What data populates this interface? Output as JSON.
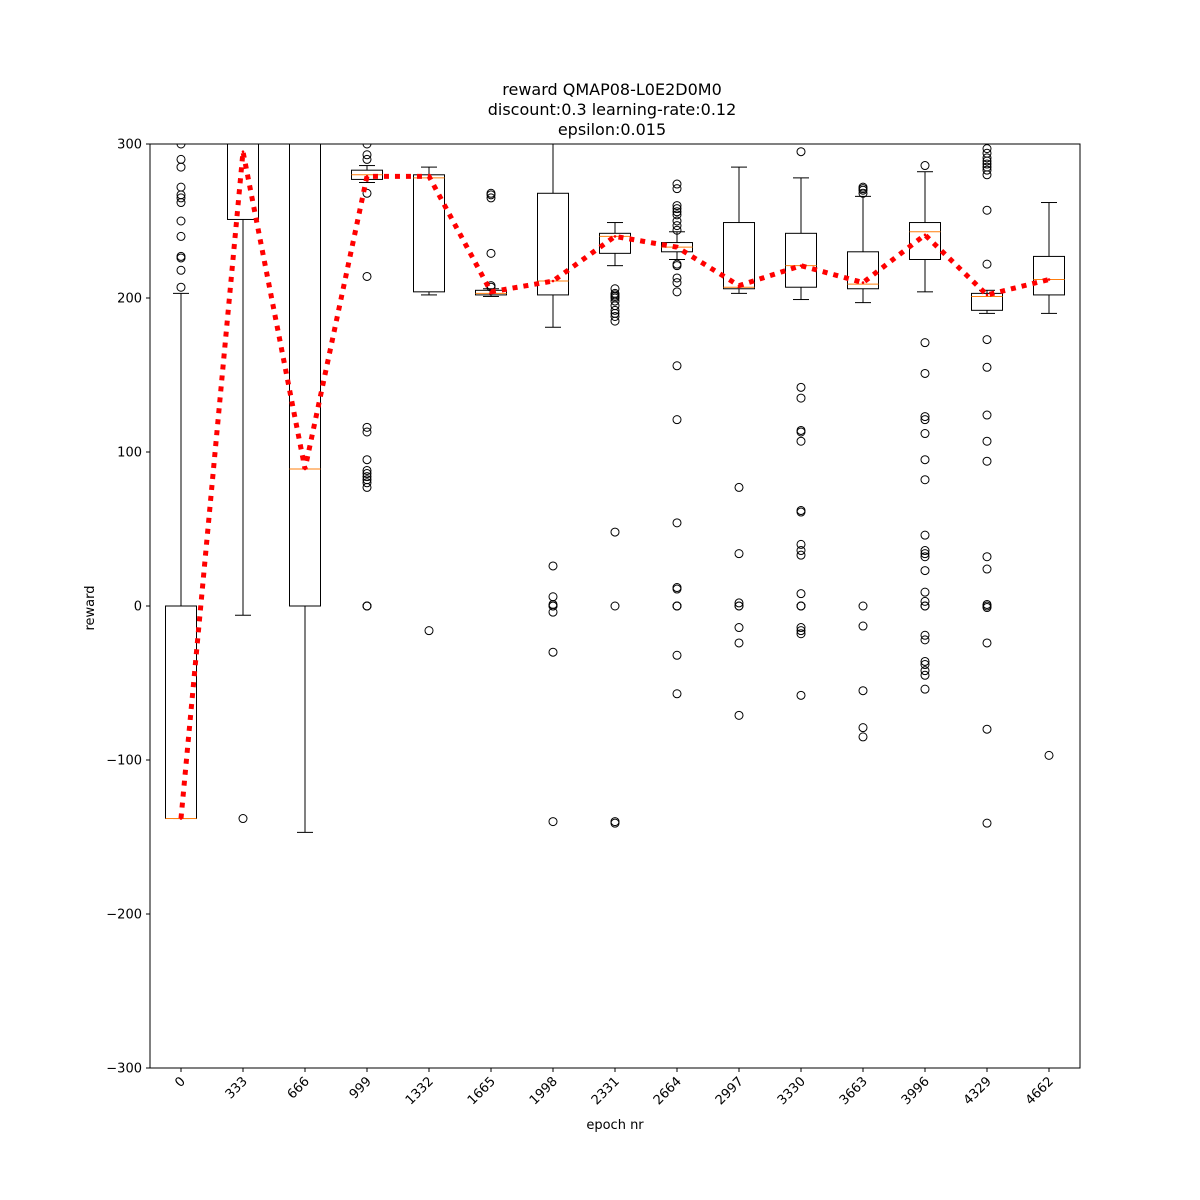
{
  "chart_data": {
    "type": "box",
    "title": [
      "reward QMAP08-L0E2D0M0",
      "discount:0.3 learning-rate:0.12",
      "epsilon:0.015"
    ],
    "xlabel": "epoch nr",
    "ylabel": "reward",
    "ylim": [
      -300,
      300
    ],
    "yticks": [
      -300,
      -200,
      -100,
      0,
      100,
      200,
      300
    ],
    "ytick_labels": [
      "−300",
      "−200",
      "−100",
      "0",
      "100",
      "200",
      "300"
    ],
    "categories": [
      "0",
      "333",
      "666",
      "999",
      "1332",
      "1665",
      "1998",
      "2331",
      "2664",
      "2997",
      "3330",
      "3663",
      "3996",
      "4329",
      "4662"
    ],
    "colors": {
      "box": "#000000",
      "median": "#ff7f0e",
      "mean_line": "#ff0000",
      "flier": "#000000"
    },
    "boxes": [
      {
        "q1": -138,
        "median": -138,
        "q3": 0,
        "whisker_low": -138,
        "whisker_high": 203,
        "fliers": [
          207,
          218,
          226,
          227,
          240,
          250,
          262,
          265,
          267,
          272,
          285,
          290,
          300
        ]
      },
      {
        "q1": 251,
        "median": 300,
        "q3": 300,
        "whisker_low": -6,
        "whisker_high": 300,
        "fliers": [
          -138
        ]
      },
      {
        "q1": 0,
        "median": 89,
        "q3": 300,
        "whisker_low": -147,
        "whisker_high": 300,
        "fliers": []
      },
      {
        "q1": 277,
        "median": 280,
        "q3": 283,
        "whisker_low": 275,
        "whisker_high": 286,
        "fliers": [
          0,
          0,
          0,
          77,
          80,
          82,
          84,
          86,
          88,
          95,
          113,
          116,
          214,
          268,
          290,
          293,
          300
        ]
      },
      {
        "q1": 204,
        "median": 278,
        "q3": 280,
        "whisker_low": 202,
        "whisker_high": 285,
        "fliers": [
          -16
        ]
      },
      {
        "q1": 202,
        "median": 203,
        "q3": 205,
        "whisker_low": 201,
        "whisker_high": 206,
        "fliers": [
          207,
          208,
          229,
          265,
          267,
          268
        ]
      },
      {
        "q1": 202,
        "median": 211,
        "q3": 268,
        "whisker_low": 181,
        "whisker_high": 300,
        "fliers": [
          -140,
          -30,
          -4,
          0,
          0,
          1,
          6,
          26
        ]
      },
      {
        "q1": 229,
        "median": 240,
        "q3": 242,
        "whisker_low": 221,
        "whisker_high": 249,
        "fliers": [
          -140,
          -141,
          0,
          48,
          185,
          188,
          190,
          192,
          195,
          198,
          200,
          201,
          202,
          203,
          206
        ]
      },
      {
        "q1": 230,
        "median": 233,
        "q3": 236,
        "whisker_low": 225,
        "whisker_high": 243,
        "fliers": [
          -57,
          -32,
          0,
          0,
          0,
          11,
          12,
          54,
          121,
          156,
          204,
          210,
          213,
          221,
          222,
          244,
          247,
          250,
          254,
          256,
          258,
          260,
          271,
          274
        ]
      },
      {
        "q1": 206,
        "median": 207,
        "q3": 249,
        "whisker_low": 203,
        "whisker_high": 285,
        "fliers": [
          -71,
          -24,
          -14,
          0,
          0,
          2,
          34,
          77
        ]
      },
      {
        "q1": 207,
        "median": 221,
        "q3": 242,
        "whisker_low": 199,
        "whisker_high": 278,
        "fliers": [
          -58,
          -18,
          -16,
          -14,
          0,
          0,
          0,
          8,
          33,
          36,
          40,
          61,
          62,
          107,
          113,
          114,
          135,
          142,
          295
        ]
      },
      {
        "q1": 206,
        "median": 209,
        "q3": 230,
        "whisker_low": 197,
        "whisker_high": 266,
        "fliers": [
          -85,
          -79,
          -55,
          -13,
          0,
          268,
          270,
          271,
          272
        ]
      },
      {
        "q1": 225,
        "median": 243,
        "q3": 249,
        "whisker_low": 204,
        "whisker_high": 282,
        "fliers": [
          -54,
          -45,
          -42,
          -38,
          -36,
          -22,
          -19,
          0,
          0,
          3,
          9,
          23,
          32,
          34,
          36,
          46,
          82,
          95,
          112,
          121,
          123,
          151,
          171,
          286
        ]
      },
      {
        "q1": 192,
        "median": 201,
        "q3": 203,
        "whisker_low": 190,
        "whisker_high": 205,
        "fliers": [
          -141,
          -80,
          -24,
          -1,
          0,
          1,
          24,
          32,
          94,
          107,
          124,
          155,
          173,
          222,
          257,
          280,
          283,
          285,
          287,
          289,
          291,
          294,
          297
        ]
      },
      {
        "q1": 202,
        "median": 212,
        "q3": 227,
        "whisker_low": 190,
        "whisker_high": 262,
        "fliers": [
          -97
        ]
      }
    ],
    "mean_line": [
      -138,
      295,
      89,
      279,
      279,
      204,
      211,
      240,
      233,
      208,
      221,
      210,
      241,
      202,
      212
    ]
  }
}
